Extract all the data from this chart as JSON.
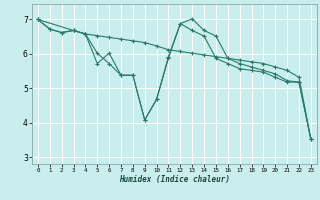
{
  "background_color": "#caeeed",
  "grid_color": "#ffffff",
  "line_color": "#2a7a6a",
  "xlabel": "Humidex (Indice chaleur)",
  "xlim": [
    -0.5,
    23.5
  ],
  "ylim": [
    2.8,
    7.45
  ],
  "yticks": [
    3,
    4,
    5,
    6,
    7
  ],
  "xticks": [
    0,
    1,
    2,
    3,
    4,
    5,
    6,
    7,
    8,
    9,
    10,
    11,
    12,
    13,
    14,
    15,
    16,
    17,
    18,
    19,
    20,
    21,
    22,
    23
  ],
  "line1_x": [
    0,
    1,
    2,
    3,
    4,
    5,
    6,
    7,
    8,
    9,
    10,
    11,
    12,
    13,
    14,
    15,
    16,
    17,
    18,
    19,
    20,
    21,
    22,
    23
  ],
  "line1_y": [
    7.0,
    6.72,
    6.62,
    6.68,
    6.58,
    6.53,
    6.48,
    6.43,
    6.38,
    6.33,
    6.23,
    6.12,
    6.07,
    6.02,
    5.97,
    5.92,
    5.87,
    5.82,
    5.77,
    5.72,
    5.62,
    5.52,
    5.32,
    3.52
  ],
  "line2_x": [
    0,
    1,
    2,
    3,
    4,
    5,
    6,
    7,
    8,
    9,
    10,
    11,
    12,
    13,
    14,
    15,
    16,
    17,
    18,
    19,
    20,
    21,
    22,
    23
  ],
  "line2_y": [
    7.0,
    6.72,
    6.62,
    6.68,
    6.58,
    6.02,
    5.72,
    5.38,
    5.38,
    4.08,
    4.68,
    5.92,
    6.88,
    7.02,
    6.68,
    6.52,
    5.87,
    5.72,
    5.62,
    5.52,
    5.42,
    5.22,
    5.18,
    3.52
  ],
  "line3_x": [
    0,
    3,
    4,
    5,
    6,
    7,
    8,
    9,
    10,
    11,
    12,
    13,
    14,
    15,
    16,
    17,
    18,
    19,
    20,
    21,
    22,
    23
  ],
  "line3_y": [
    7.0,
    6.68,
    6.58,
    5.72,
    6.02,
    5.38,
    5.38,
    4.08,
    4.68,
    5.88,
    6.88,
    6.68,
    6.52,
    5.87,
    5.72,
    5.57,
    5.52,
    5.47,
    5.32,
    5.18,
    5.18,
    3.52
  ]
}
